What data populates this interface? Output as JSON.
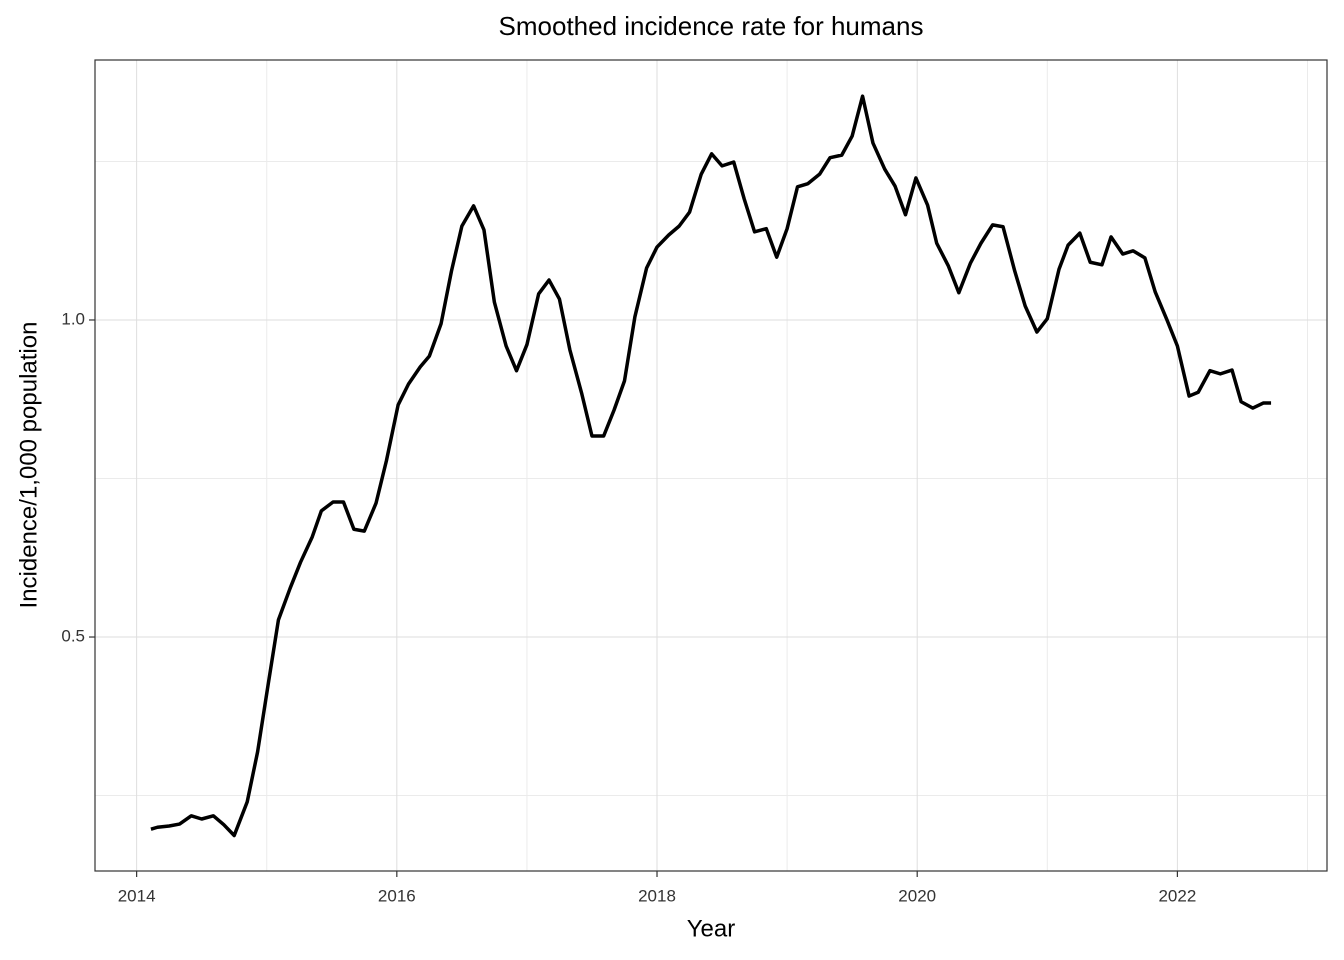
{
  "chart_data": {
    "type": "line",
    "title": "Smoothed incidence rate for humans",
    "x_label": "Year",
    "y_label": "Incidence/1,000 population",
    "xlim": [
      2013.68,
      2023.15
    ],
    "ylim": [
      0.131,
      1.41
    ],
    "xticks": [
      2014,
      2016,
      2018,
      2020,
      2022
    ],
    "yticks": [
      {
        "value": 0.5,
        "label": "0.5"
      },
      {
        "value": 1,
        "label": "1.0"
      }
    ],
    "x_minor_ticks": [
      2015,
      2017,
      2019,
      2021,
      2023
    ],
    "y_minor_ticks": [
      0.25,
      0.75,
      1.25
    ],
    "grid": true,
    "x": [
      2014.11,
      2014.16,
      2014.25,
      2014.33,
      2014.42,
      2014.5,
      2014.59,
      2014.67,
      2014.75,
      2014.85,
      2014.93,
      2015.01,
      2015.09,
      2015.18,
      2015.26,
      2015.35,
      2015.42,
      2015.51,
      2015.59,
      2015.67,
      2015.75,
      2015.84,
      2015.92,
      2016.01,
      2016.09,
      2016.18,
      2016.25,
      2016.34,
      2016.42,
      2016.5,
      2016.59,
      2016.67,
      2016.75,
      2016.84,
      2016.92,
      2017.0,
      2017.09,
      2017.17,
      2017.25,
      2017.33,
      2017.42,
      2017.5,
      2017.59,
      2017.67,
      2017.75,
      2017.83,
      2017.92,
      2018.0,
      2018.09,
      2018.17,
      2018.25,
      2018.34,
      2018.42,
      2018.5,
      2018.59,
      2018.67,
      2018.75,
      2018.84,
      2018.92,
      2019.0,
      2019.08,
      2019.16,
      2019.25,
      2019.33,
      2019.42,
      2019.5,
      2019.58,
      2019.66,
      2019.75,
      2019.83,
      2019.91,
      2019.99,
      2020.08,
      2020.15,
      2020.24,
      2020.32,
      2020.41,
      2020.49,
      2020.58,
      2020.66,
      2020.75,
      2020.83,
      2020.92,
      2021.0,
      2021.09,
      2021.16,
      2021.25,
      2021.33,
      2021.42,
      2021.49,
      2021.58,
      2021.66,
      2021.75,
      2021.83,
      2021.92,
      2022.0,
      2022.09,
      2022.16,
      2022.25,
      2022.33,
      2022.42,
      2022.49,
      2022.58,
      2022.66,
      2022.72
    ],
    "series": [
      {
        "name": "Incidence",
        "color": "#000000",
        "values": [
          0.197,
          0.2,
          0.202,
          0.205,
          0.218,
          0.213,
          0.218,
          0.204,
          0.187,
          0.24,
          0.319,
          0.424,
          0.527,
          0.577,
          0.618,
          0.658,
          0.699,
          0.713,
          0.713,
          0.67,
          0.667,
          0.711,
          0.778,
          0.866,
          0.899,
          0.926,
          0.943,
          0.994,
          1.077,
          1.148,
          1.18,
          1.142,
          1.028,
          0.959,
          0.92,
          0.961,
          1.041,
          1.063,
          1.033,
          0.953,
          0.885,
          0.817,
          0.817,
          0.858,
          0.904,
          1.005,
          1.082,
          1.115,
          1.134,
          1.148,
          1.17,
          1.23,
          1.262,
          1.243,
          1.249,
          1.191,
          1.139,
          1.144,
          1.099,
          1.144,
          1.21,
          1.215,
          1.23,
          1.256,
          1.26,
          1.29,
          1.353,
          1.279,
          1.238,
          1.211,
          1.166,
          1.224,
          1.181,
          1.121,
          1.085,
          1.043,
          1.09,
          1.121,
          1.15,
          1.147,
          1.077,
          1.022,
          0.981,
          1.002,
          1.08,
          1.118,
          1.137,
          1.091,
          1.087,
          1.131,
          1.104,
          1.109,
          1.098,
          1.044,
          1.0,
          0.959,
          0.88,
          0.886,
          0.92,
          0.915,
          0.921,
          0.871,
          0.861,
          0.869,
          0.869
        ]
      }
    ]
  }
}
